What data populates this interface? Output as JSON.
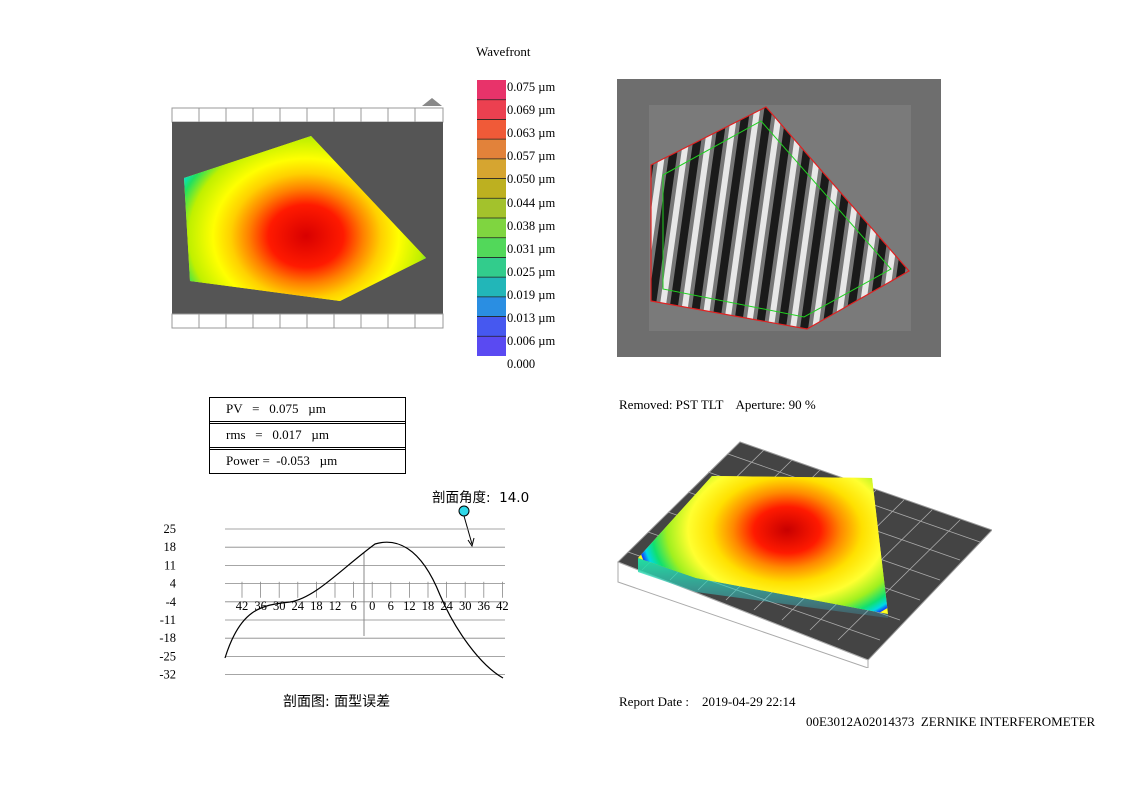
{
  "colorbar": {
    "title": "Wavefront",
    "labels": [
      "0.075 µm",
      "0.069 µm",
      "0.063 µm",
      "0.057 µm",
      "0.050 µm",
      "0.044 µm",
      "0.038 µm",
      "0.031 µm",
      "0.025 µm",
      "0.019 µm",
      "0.013 µm",
      "0.006 µm",
      "0.000"
    ],
    "colors": [
      "#e8336a",
      "#ec4050",
      "#f05a38",
      "#e2823a",
      "#d6a530",
      "#bdb020",
      "#a3c22c",
      "#7fd540",
      "#52d85a",
      "#32cc8c",
      "#22b6b8",
      "#2a8ee2",
      "#4658f0",
      "#5a4af2"
    ]
  },
  "stats": {
    "pv": "PV   =   0.075   µm",
    "rms": "rms   =   0.017   µm",
    "power": "Power =  -0.053   µm"
  },
  "removed": "Removed: PST TLT    Aperture: 90 %",
  "report": "Report Date :    2019-04-29 22:14",
  "device": "00E3012A02014373  ZERNIKE INTERFEROMETER",
  "profile": {
    "angle_label": "剖面角度:  14.0",
    "caption": "剖面图: 面型误差",
    "y_ticks": [
      "25",
      "18",
      "11",
      "4",
      "-4",
      "-11",
      "-18",
      "-25",
      "-32"
    ],
    "x_ticks": [
      "42",
      "36",
      "30",
      "24",
      "18",
      "12",
      "6",
      "0",
      "6",
      "12",
      "18",
      "24",
      "30",
      "36",
      "42"
    ]
  }
}
